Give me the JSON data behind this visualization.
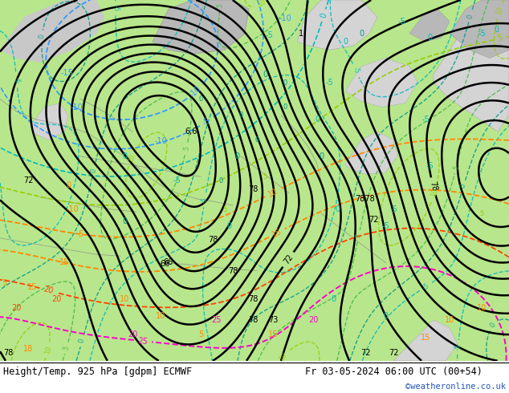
{
  "title_left": "Height/Temp. 925 hPa [gdpm] ECMWF",
  "title_right": "Fr 03-05-2024 06:00 UTC (00+54)",
  "watermark": "©weatheronline.co.uk",
  "bg_color": "#ffffff",
  "green_light": "#b8e68c",
  "green_mid": "#a0d870",
  "green_pale": "#d0f0a0",
  "gray_land": "#b8b8b8",
  "gray_sea": "#c8c8c8",
  "gray_sea2": "#d4d4d4",
  "black": "#000000",
  "blue": "#3399ff",
  "blue_dark": "#1155cc",
  "cyan": "#00bbbb",
  "cyan2": "#00ccaa",
  "teal": "#009988",
  "green_line": "#44bb44",
  "yellow_green": "#99cc00",
  "orange": "#ff8800",
  "orange_red": "#ff4400",
  "red": "#ff2200",
  "magenta": "#ff00cc",
  "watermark_color": "#2255bb",
  "font_mono": "DejaVu Sans Mono"
}
